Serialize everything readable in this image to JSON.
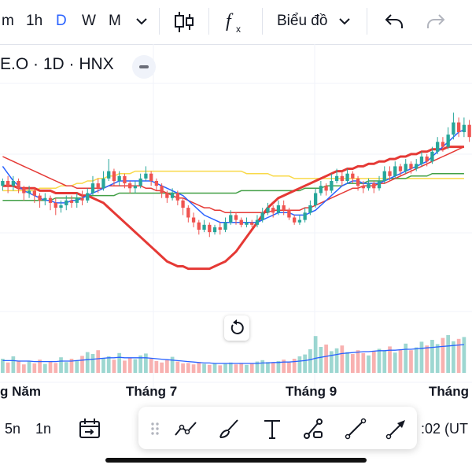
{
  "toolbar": {
    "intervals": [
      "m",
      "1h",
      "D",
      "W",
      "M"
    ],
    "active_interval": "D",
    "chart_menu_label": "Biểu đồ",
    "icons": [
      "chevron-down-icon",
      "candlestick-icon",
      "indicators-fx-icon",
      "undo-icon",
      "redo-icon"
    ]
  },
  "legend": {
    "symbol_text": "E.O · 1D · HNX"
  },
  "x_axis": {
    "labels": [
      "g Năm",
      "Tháng 7",
      "Tháng 9",
      "Tháng"
    ]
  },
  "bottom": {
    "ranges": [
      "5n",
      "1n"
    ],
    "clock_text": ":02 (UT",
    "drawing_tools": [
      "drag-handle-icon",
      "trend-line-tool-icon",
      "brush-tool-icon",
      "text-tool-icon",
      "path-tool-icon",
      "line-tool-icon",
      "arrow-tool-icon"
    ]
  },
  "colors": {
    "up": "#26a69a",
    "down": "#ef5350",
    "ma_blue": "#2962ff",
    "ma_red": "#e53935",
    "ma_green": "#43a047",
    "ma_yellow": "#f9d949",
    "ma_thick_red": "#e53935",
    "active": "#2962ff"
  },
  "chart_data": {
    "type": "candlestick",
    "title": "",
    "xlabel": "",
    "ylabel": "",
    "x_ticks": [
      "g Năm",
      "Tháng 7",
      "Tháng 9",
      "Tháng"
    ],
    "candles": [
      [
        0.58,
        0.6,
        0.56,
        0.61
      ],
      [
        0.6,
        0.58,
        0.55,
        0.62
      ],
      [
        0.58,
        0.6,
        0.56,
        0.62
      ],
      [
        0.6,
        0.57,
        0.55,
        0.61
      ],
      [
        0.57,
        0.55,
        0.52,
        0.58
      ],
      [
        0.55,
        0.56,
        0.53,
        0.58
      ],
      [
        0.56,
        0.54,
        0.51,
        0.57
      ],
      [
        0.54,
        0.52,
        0.49,
        0.55
      ],
      [
        0.52,
        0.53,
        0.5,
        0.55
      ],
      [
        0.53,
        0.51,
        0.48,
        0.54
      ],
      [
        0.51,
        0.49,
        0.46,
        0.53
      ],
      [
        0.49,
        0.5,
        0.47,
        0.52
      ],
      [
        0.5,
        0.52,
        0.48,
        0.54
      ],
      [
        0.52,
        0.51,
        0.49,
        0.54
      ],
      [
        0.51,
        0.53,
        0.49,
        0.55
      ],
      [
        0.53,
        0.52,
        0.5,
        0.56
      ],
      [
        0.52,
        0.55,
        0.51,
        0.57
      ],
      [
        0.55,
        0.59,
        0.54,
        0.62
      ],
      [
        0.59,
        0.57,
        0.55,
        0.61
      ],
      [
        0.57,
        0.61,
        0.56,
        0.64
      ],
      [
        0.61,
        0.64,
        0.6,
        0.69
      ],
      [
        0.64,
        0.6,
        0.58,
        0.65
      ],
      [
        0.6,
        0.62,
        0.58,
        0.64
      ],
      [
        0.62,
        0.59,
        0.57,
        0.63
      ],
      [
        0.59,
        0.57,
        0.55,
        0.6
      ],
      [
        0.57,
        0.58,
        0.55,
        0.6
      ],
      [
        0.58,
        0.61,
        0.57,
        0.63
      ],
      [
        0.61,
        0.63,
        0.6,
        0.66
      ],
      [
        0.63,
        0.6,
        0.58,
        0.64
      ],
      [
        0.6,
        0.58,
        0.56,
        0.61
      ],
      [
        0.58,
        0.55,
        0.53,
        0.59
      ],
      [
        0.55,
        0.53,
        0.51,
        0.56
      ],
      [
        0.53,
        0.55,
        0.52,
        0.57
      ],
      [
        0.55,
        0.52,
        0.5,
        0.56
      ],
      [
        0.52,
        0.49,
        0.46,
        0.53
      ],
      [
        0.49,
        0.45,
        0.43,
        0.5
      ],
      [
        0.45,
        0.43,
        0.41,
        0.47
      ],
      [
        0.43,
        0.4,
        0.38,
        0.44
      ],
      [
        0.4,
        0.42,
        0.39,
        0.44
      ],
      [
        0.42,
        0.39,
        0.37,
        0.43
      ],
      [
        0.39,
        0.41,
        0.38,
        0.42
      ],
      [
        0.41,
        0.4,
        0.38,
        0.43
      ],
      [
        0.4,
        0.43,
        0.39,
        0.45
      ],
      [
        0.43,
        0.46,
        0.42,
        0.48
      ],
      [
        0.46,
        0.44,
        0.42,
        0.47
      ],
      [
        0.44,
        0.42,
        0.41,
        0.45
      ],
      [
        0.42,
        0.43,
        0.41,
        0.45
      ],
      [
        0.43,
        0.42,
        0.41,
        0.44
      ],
      [
        0.42,
        0.44,
        0.41,
        0.46
      ],
      [
        0.44,
        0.47,
        0.43,
        0.49
      ],
      [
        0.47,
        0.49,
        0.46,
        0.51
      ],
      [
        0.49,
        0.47,
        0.45,
        0.5
      ],
      [
        0.47,
        0.5,
        0.46,
        0.52
      ],
      [
        0.5,
        0.48,
        0.46,
        0.52
      ],
      [
        0.48,
        0.45,
        0.44,
        0.49
      ],
      [
        0.45,
        0.43,
        0.42,
        0.46
      ],
      [
        0.43,
        0.44,
        0.42,
        0.46
      ],
      [
        0.44,
        0.47,
        0.43,
        0.49
      ],
      [
        0.47,
        0.5,
        0.46,
        0.52
      ],
      [
        0.5,
        0.55,
        0.49,
        0.57
      ],
      [
        0.55,
        0.58,
        0.54,
        0.6
      ],
      [
        0.58,
        0.56,
        0.54,
        0.59
      ],
      [
        0.56,
        0.6,
        0.55,
        0.63
      ],
      [
        0.6,
        0.62,
        0.59,
        0.65
      ],
      [
        0.62,
        0.6,
        0.58,
        0.64
      ],
      [
        0.6,
        0.63,
        0.59,
        0.65
      ],
      [
        0.63,
        0.61,
        0.59,
        0.64
      ],
      [
        0.61,
        0.58,
        0.56,
        0.62
      ],
      [
        0.58,
        0.57,
        0.55,
        0.6
      ],
      [
        0.57,
        0.59,
        0.56,
        0.61
      ],
      [
        0.59,
        0.57,
        0.55,
        0.6
      ],
      [
        0.57,
        0.6,
        0.56,
        0.62
      ],
      [
        0.6,
        0.64,
        0.59,
        0.66
      ],
      [
        0.64,
        0.62,
        0.6,
        0.66
      ],
      [
        0.62,
        0.66,
        0.61,
        0.68
      ],
      [
        0.66,
        0.64,
        0.62,
        0.67
      ],
      [
        0.64,
        0.67,
        0.63,
        0.69
      ],
      [
        0.67,
        0.65,
        0.63,
        0.68
      ],
      [
        0.65,
        0.67,
        0.64,
        0.69
      ],
      [
        0.67,
        0.7,
        0.66,
        0.72
      ],
      [
        0.7,
        0.68,
        0.66,
        0.71
      ],
      [
        0.68,
        0.72,
        0.67,
        0.74
      ],
      [
        0.72,
        0.76,
        0.71,
        0.78
      ],
      [
        0.76,
        0.74,
        0.72,
        0.78
      ],
      [
        0.74,
        0.79,
        0.73,
        0.82
      ],
      [
        0.79,
        0.84,
        0.77,
        0.88
      ],
      [
        0.84,
        0.8,
        0.78,
        0.86
      ],
      [
        0.8,
        0.83,
        0.78,
        0.86
      ],
      [
        0.83,
        0.78,
        0.76,
        0.85
      ]
    ],
    "volume": [
      0.3,
      0.22,
      0.35,
      0.26,
      0.18,
      0.24,
      0.2,
      0.28,
      0.19,
      0.25,
      0.21,
      0.33,
      0.23,
      0.3,
      0.27,
      0.36,
      0.44,
      0.4,
      0.48,
      0.31,
      0.35,
      0.28,
      0.42,
      0.26,
      0.32,
      0.29,
      0.37,
      0.41,
      0.3,
      0.25,
      0.22,
      0.27,
      0.34,
      0.24,
      0.2,
      0.21,
      0.18,
      0.23,
      0.19,
      0.17,
      0.2,
      0.16,
      0.19,
      0.22,
      0.18,
      0.21,
      0.17,
      0.2,
      0.24,
      0.27,
      0.23,
      0.21,
      0.25,
      0.28,
      0.22,
      0.3,
      0.35,
      0.39,
      0.5,
      0.78,
      0.55,
      0.6,
      0.46,
      0.52,
      0.58,
      0.44,
      0.4,
      0.48,
      0.42,
      0.37,
      0.45,
      0.51,
      0.47,
      0.56,
      0.43,
      0.5,
      0.62,
      0.48,
      0.54,
      0.66,
      0.58,
      0.7,
      0.61,
      0.74,
      0.8,
      0.67,
      0.72,
      0.76
    ],
    "ma_fast": [
      0.66,
      0.63,
      0.6,
      0.58,
      0.56,
      0.55,
      0.54,
      0.53,
      0.52,
      0.52,
      0.51,
      0.51,
      0.51,
      0.52,
      0.52,
      0.53,
      0.54,
      0.55,
      0.56,
      0.57,
      0.58,
      0.59,
      0.6,
      0.6,
      0.6,
      0.6,
      0.6,
      0.6,
      0.6,
      0.59,
      0.58,
      0.57,
      0.56,
      0.55,
      0.54,
      0.52,
      0.5,
      0.48,
      0.46,
      0.45,
      0.44,
      0.43,
      0.43,
      0.43,
      0.43,
      0.43,
      0.43,
      0.43,
      0.43,
      0.44,
      0.45,
      0.46,
      0.47,
      0.47,
      0.47,
      0.46,
      0.46,
      0.46,
      0.47,
      0.48,
      0.5,
      0.52,
      0.54,
      0.56,
      0.58,
      0.59,
      0.6,
      0.6,
      0.59,
      0.59,
      0.59,
      0.59,
      0.6,
      0.61,
      0.62,
      0.63,
      0.64,
      0.65,
      0.66,
      0.67,
      0.68,
      0.7,
      0.72,
      0.74,
      0.76,
      0.78,
      0.8,
      0.81
    ],
    "ma_red": [
      0.7,
      0.69,
      0.68,
      0.67,
      0.66,
      0.65,
      0.64,
      0.63,
      0.62,
      0.61,
      0.6,
      0.59,
      0.58,
      0.58,
      0.57,
      0.57,
      0.57,
      0.57,
      0.57,
      0.57,
      0.58,
      0.58,
      0.58,
      0.58,
      0.58,
      0.58,
      0.58,
      0.57,
      0.57,
      0.56,
      0.56,
      0.55,
      0.54,
      0.53,
      0.53,
      0.52,
      0.51,
      0.5,
      0.49,
      0.49,
      0.48,
      0.48,
      0.47,
      0.47,
      0.47,
      0.47,
      0.47,
      0.47,
      0.47,
      0.47,
      0.47,
      0.48,
      0.48,
      0.48,
      0.48,
      0.48,
      0.48,
      0.49,
      0.49,
      0.5,
      0.51,
      0.52,
      0.53,
      0.54,
      0.55,
      0.56,
      0.57,
      0.57,
      0.58,
      0.58,
      0.58,
      0.59,
      0.59,
      0.6,
      0.61,
      0.62,
      0.63,
      0.64,
      0.65,
      0.66,
      0.67,
      0.68,
      0.69,
      0.7,
      0.71,
      0.72,
      0.73,
      0.74
    ],
    "ma_green": [
      0.52,
      0.52,
      0.52,
      0.52,
      0.52,
      0.52,
      0.52,
      0.52,
      0.52,
      0.52,
      0.53,
      0.53,
      0.53,
      0.53,
      0.53,
      0.53,
      0.54,
      0.54,
      0.54,
      0.54,
      0.54,
      0.54,
      0.55,
      0.55,
      0.55,
      0.55,
      0.55,
      0.55,
      0.55,
      0.55,
      0.55,
      0.55,
      0.55,
      0.55,
      0.55,
      0.55,
      0.55,
      0.55,
      0.55,
      0.55,
      0.55,
      0.55,
      0.55,
      0.55,
      0.55,
      0.56,
      0.56,
      0.56,
      0.56,
      0.56,
      0.56,
      0.56,
      0.56,
      0.56,
      0.56,
      0.56,
      0.56,
      0.57,
      0.57,
      0.57,
      0.57,
      0.58,
      0.58,
      0.58,
      0.58,
      0.59,
      0.59,
      0.59,
      0.59,
      0.6,
      0.6,
      0.6,
      0.6,
      0.61,
      0.61,
      0.61,
      0.61,
      0.62,
      0.62,
      0.62,
      0.62,
      0.63,
      0.63,
      0.63,
      0.63,
      0.63,
      0.63,
      0.63
    ],
    "ma_yellow": [
      0.56,
      0.56,
      0.56,
      0.56,
      0.56,
      0.56,
      0.56,
      0.57,
      0.57,
      0.57,
      0.57,
      0.58,
      0.58,
      0.58,
      0.59,
      0.59,
      0.6,
      0.6,
      0.61,
      0.61,
      0.62,
      0.62,
      0.63,
      0.63,
      0.63,
      0.64,
      0.64,
      0.64,
      0.64,
      0.64,
      0.64,
      0.64,
      0.64,
      0.64,
      0.64,
      0.64,
      0.64,
      0.64,
      0.64,
      0.64,
      0.64,
      0.64,
      0.64,
      0.64,
      0.64,
      0.64,
      0.63,
      0.63,
      0.63,
      0.63,
      0.63,
      0.62,
      0.62,
      0.62,
      0.62,
      0.61,
      0.61,
      0.61,
      0.61,
      0.61,
      0.61,
      0.61,
      0.61,
      0.61,
      0.61,
      0.61,
      0.61,
      0.61,
      0.61,
      0.61,
      0.61,
      0.61,
      0.61,
      0.61,
      0.61,
      0.61,
      0.61,
      0.61,
      0.61,
      0.61,
      0.61,
      0.61,
      0.61,
      0.61,
      0.61,
      0.61,
      0.61,
      0.61
    ],
    "ma_thick": [
      0.58,
      0.58,
      0.58,
      0.57,
      0.57,
      0.57,
      0.57,
      0.56,
      0.56,
      0.56,
      0.55,
      0.55,
      0.55,
      0.55,
      0.55,
      0.54,
      0.54,
      0.53,
      0.52,
      0.51,
      0.49,
      0.47,
      0.45,
      0.43,
      0.41,
      0.39,
      0.37,
      0.35,
      0.33,
      0.31,
      0.29,
      0.27,
      0.26,
      0.25,
      0.25,
      0.24,
      0.24,
      0.24,
      0.24,
      0.24,
      0.25,
      0.26,
      0.27,
      0.29,
      0.31,
      0.34,
      0.37,
      0.4,
      0.43,
      0.46,
      0.49,
      0.51,
      0.53,
      0.54,
      0.55,
      0.56,
      0.57,
      0.58,
      0.59,
      0.6,
      0.61,
      0.62,
      0.63,
      0.64,
      0.64,
      0.65,
      0.65,
      0.66,
      0.66,
      0.67,
      0.67,
      0.68,
      0.68,
      0.69,
      0.69,
      0.7,
      0.7,
      0.71,
      0.71,
      0.72,
      0.72,
      0.73,
      0.73,
      0.73,
      0.74,
      0.74,
      0.74,
      0.74
    ],
    "ma_volume": [
      0.26,
      0.26,
      0.26,
      0.25,
      0.25,
      0.25,
      0.24,
      0.24,
      0.24,
      0.24,
      0.24,
      0.25,
      0.25,
      0.25,
      0.26,
      0.27,
      0.28,
      0.29,
      0.3,
      0.31,
      0.32,
      0.32,
      0.33,
      0.32,
      0.32,
      0.32,
      0.32,
      0.32,
      0.31,
      0.3,
      0.29,
      0.28,
      0.27,
      0.26,
      0.25,
      0.24,
      0.23,
      0.22,
      0.21,
      0.21,
      0.2,
      0.2,
      0.2,
      0.2,
      0.2,
      0.2,
      0.2,
      0.2,
      0.2,
      0.21,
      0.21,
      0.22,
      0.22,
      0.23,
      0.23,
      0.24,
      0.25,
      0.26,
      0.28,
      0.31,
      0.33,
      0.35,
      0.37,
      0.39,
      0.41,
      0.42,
      0.43,
      0.44,
      0.45,
      0.45,
      0.46,
      0.47,
      0.47,
      0.48,
      0.48,
      0.49,
      0.5,
      0.5,
      0.51,
      0.52,
      0.53,
      0.54,
      0.55,
      0.56,
      0.57,
      0.58,
      0.59,
      0.6
    ]
  }
}
